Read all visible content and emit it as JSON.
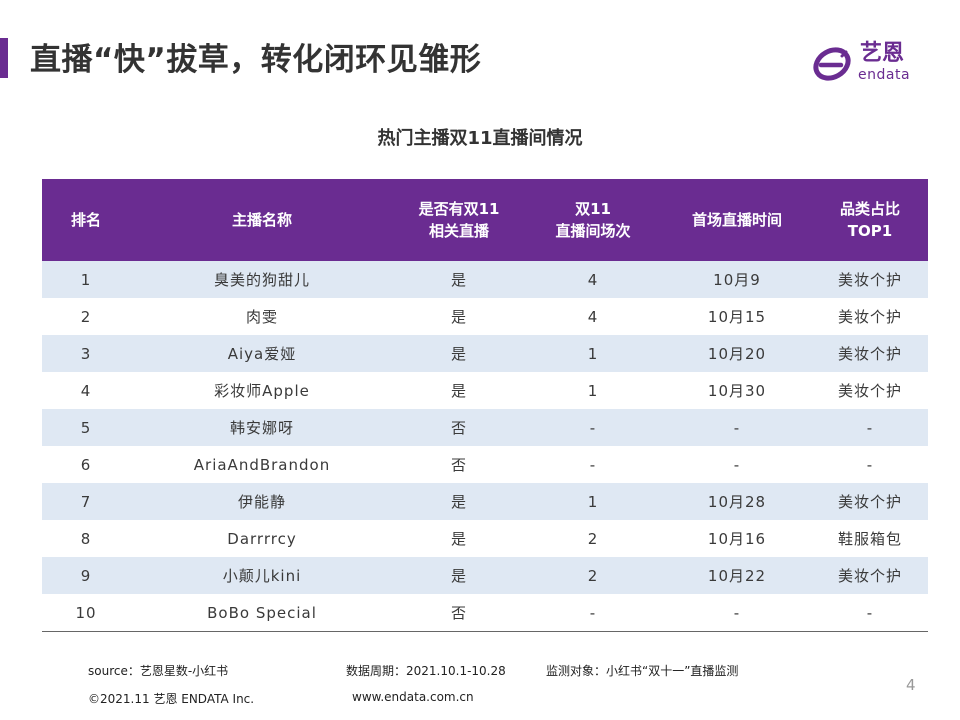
{
  "header": {
    "title": "直播“快”拔草，转化闭环见雏形",
    "logo_cn": "艺恩",
    "logo_en": "endata"
  },
  "table": {
    "title": "热门主播双11直播间情况",
    "headers": [
      [
        "排名"
      ],
      [
        "主播名称"
      ],
      [
        "是否有双11",
        "相关直播"
      ],
      [
        "双11",
        "直播间场次"
      ],
      [
        "首场直播时间"
      ],
      [
        "品类占比",
        "TOP1"
      ]
    ],
    "rows": [
      [
        "1",
        "臭美的狗甜儿",
        "是",
        "4",
        "10月9",
        "美妆个护"
      ],
      [
        "2",
        "肉雯",
        "是",
        "4",
        "10月15",
        "美妆个护"
      ],
      [
        "3",
        "Aiya爱娅",
        "是",
        "1",
        "10月20",
        "美妆个护"
      ],
      [
        "4",
        "彩妆师Apple",
        "是",
        "1",
        "10月30",
        "美妆个护"
      ],
      [
        "5",
        "韩安娜呀",
        "否",
        "-",
        "-",
        "-"
      ],
      [
        "6",
        "AriaAndBrandon",
        "否",
        "-",
        "-",
        "-"
      ],
      [
        "7",
        "伊能静",
        "是",
        "1",
        "10月28",
        "美妆个护"
      ],
      [
        "8",
        "Darrrrcy",
        "是",
        "2",
        "10月16",
        "鞋服箱包"
      ],
      [
        "9",
        "小颠儿kini",
        "是",
        "2",
        "10月22",
        "美妆个护"
      ],
      [
        "10",
        "BoBo Special",
        "否",
        "-",
        "-",
        "-"
      ]
    ]
  },
  "footer": {
    "source": "source：艺恩星数-小红书",
    "period": "数据周期：2021.10.1-10.28",
    "monitor": "监测对象：小红书“双十一”直播监测",
    "copyright": "©2021.11 艺恩 ENDATA Inc.",
    "website": "www.endata.com.cn",
    "page_number": "4"
  },
  "colors": {
    "accent": "#6a2c91",
    "stripe": "#dfe8f3"
  }
}
